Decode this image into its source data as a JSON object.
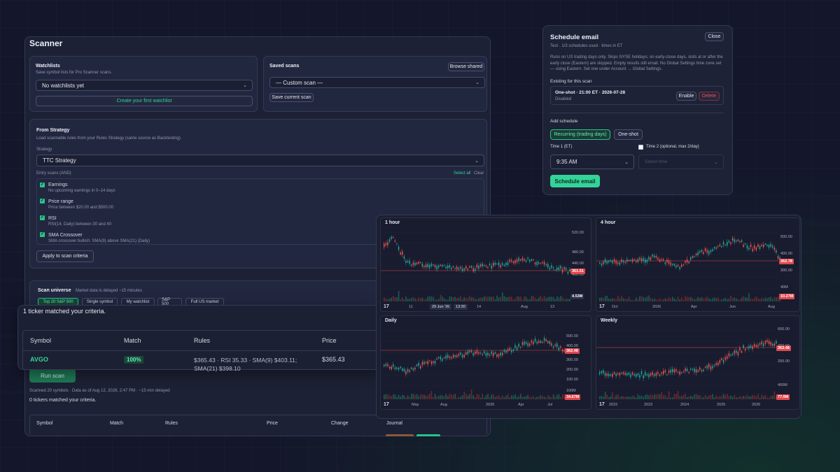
{
  "scanner": {
    "title": "Scanner",
    "watchlists": {
      "title": "Watchlists",
      "subtitle": "Save symbol lists for Pro Scanner scans.",
      "select_value": "No watchlists yet",
      "create_label": "Create your first watchlist"
    },
    "saved": {
      "title": "Saved scans",
      "browse_label": "Browse shared",
      "select_value": "— Custom scan —",
      "save_label": "Save current scan"
    },
    "strategy": {
      "title": "From Strategy",
      "subtitle": "Load scannable rules from your Rules Strategy (same source as Backtesting).",
      "strategy_label": "Strategy",
      "strategy_value": "TTC Strategy",
      "entry_label": "Entry scans (AND)",
      "select_all": "Select all",
      "clear": "Clear",
      "rules": [
        {
          "name": "Earnings",
          "desc": "No upcoming earnings in 0–14 days"
        },
        {
          "name": "Price range",
          "desc": "Price between $20.00 and $500.00"
        },
        {
          "name": "RSI",
          "desc": "RSI(14, Daily) between 30 and 40"
        },
        {
          "name": "SMA Crossover",
          "desc": "SMA crossover bullish: SMA(9) above SMA(21) (Daily)"
        }
      ],
      "apply_label": "Apply to scan criteria"
    },
    "universe": {
      "title": "Scan universe",
      "note": "Market data is delayed ~15 minutes",
      "options": [
        "Top 20 S&P 500",
        "Single symbol",
        "My watchlist",
        "S&P 500",
        "Full US market"
      ]
    },
    "run_label": "Run scan",
    "scan_info": "Scanned 20 symbols · Data as of Aug 12, 2026, 2:47 PM · ~15 min delayed",
    "zero_result": "0 tickers matched your criteria.",
    "table_headers": [
      "Symbol",
      "Match",
      "Rules",
      "Price",
      "Change",
      "Journal"
    ]
  },
  "result_overlay": {
    "summary": "1 ticker matched your criteria.",
    "headers": [
      "Symbol",
      "Match",
      "Rules",
      "Price"
    ],
    "row": {
      "symbol": "AVGO",
      "match": "100%",
      "rules": "$365.43 · RSI 35.33 · SMA(9) $403.11; SMA(21) $398.10",
      "price": "$365.43"
    }
  },
  "schedule": {
    "title": "Schedule email",
    "close_label": "Close",
    "subtitle": "Test · 1/3 schedules used · times in ET",
    "description": "Runs on US trading days only. Skips NYSE holidays; on early-close days, slots at or after the early close (Eastern) are skipped. Empty results still email. No Global Settings time zone set — using Eastern. Set one under Account → Global Settings.",
    "existing_title": "Existing for this scan",
    "existing_item": {
      "line": "One-shot · 21:00 ET · 2026-07-28",
      "status": "Disabled",
      "enable": "Enable",
      "delete": "Delete"
    },
    "add_title": "Add schedule",
    "modes": [
      "Recurring (trading days)",
      "One-shot"
    ],
    "time1_label": "Time 1 (ET)",
    "time1_value": "9:35 AM",
    "time2_label": "Time 2 (optional, max 2/day)",
    "time2_placeholder": "Select time",
    "submit_label": "Schedule email"
  },
  "charts": [
    {
      "title": "1 hour",
      "price_tag": "361.51",
      "vol_tag": "4.53M",
      "y_labels": [
        "520.00",
        "480.00",
        "440.00",
        "400.00",
        "20M"
      ],
      "x_labels": [
        "11",
        "29 Jun '26",
        "13:30",
        "14",
        "Aug",
        "13"
      ]
    },
    {
      "title": "4 hour",
      "price_tag": "362.78",
      "vol_tag": "10.27M",
      "y_labels": [
        "500.00",
        "400.00",
        "300.00",
        "40M"
      ],
      "x_labels": [
        "Oct",
        "2026",
        "Apr",
        "Jun",
        "Aug"
      ]
    },
    {
      "title": "Daily",
      "price_tag": "362.48",
      "vol_tag": "34.67M",
      "y_labels": [
        "500.00",
        "400.00",
        "300.00",
        "200.00",
        "100.00",
        "100M"
      ],
      "x_labels": [
        "May",
        "Aug",
        "2026",
        "Apr",
        "Jul"
      ]
    },
    {
      "title": "Weekly",
      "price_tag": "362.48",
      "vol_tag": "77.9M",
      "y_labels": [
        "600.00",
        "400.00",
        "200.00",
        "400M"
      ],
      "x_labels": [
        "2022",
        "2023",
        "2024",
        "2025",
        "2026"
      ]
    }
  ],
  "chart_logo": "17",
  "colors": {
    "accent": "#34d399",
    "panel": "#1d2135",
    "price_line": "#e0484d",
    "up": "#26a69a",
    "down": "#ef5350"
  }
}
